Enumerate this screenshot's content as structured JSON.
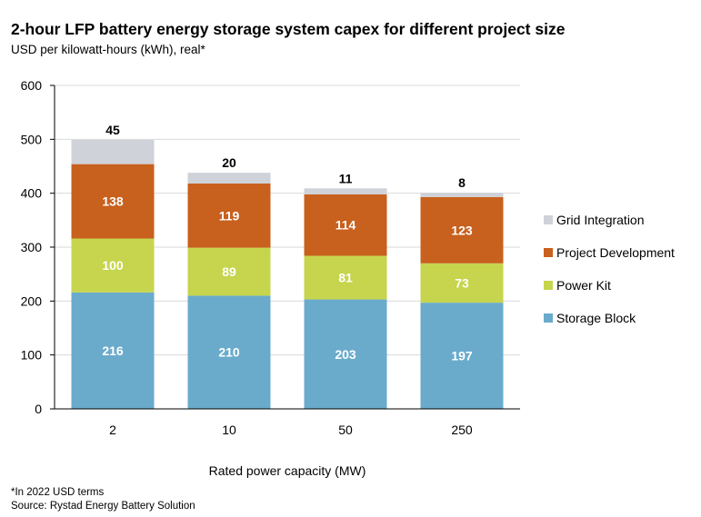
{
  "chart_data": {
    "type": "bar",
    "stacked": true,
    "title": "2-hour LFP battery energy storage system capex for different project size",
    "subtitle": "USD per kilowatt-hours (kWh), real*",
    "xlabel": "Rated power capacity (MW)",
    "ylabel": "",
    "ylim": [
      0,
      600
    ],
    "yticks": [
      0,
      100,
      200,
      300,
      400,
      500,
      600
    ],
    "categories": [
      "2",
      "10",
      "50",
      "250"
    ],
    "series": [
      {
        "name": "Storage Block",
        "color": "#6aabcc",
        "label_color": "#ffffff",
        "values": [
          216,
          210,
          203,
          197
        ]
      },
      {
        "name": "Power Kit",
        "color": "#c6d54d",
        "label_color": "#ffffff",
        "values": [
          100,
          89,
          81,
          73
        ]
      },
      {
        "name": "Project Development",
        "color": "#c8601e",
        "label_color": "#ffffff",
        "values": [
          138,
          119,
          114,
          123
        ]
      },
      {
        "name": "Grid Integration",
        "color": "#cfd2d8",
        "label_color": "#000000",
        "values": [
          45,
          20,
          11,
          8
        ]
      }
    ],
    "legend": "right",
    "grid": true
  },
  "footnote": "*In 2022 USD terms",
  "source": "Source: Rystad Energy Battery Solution"
}
